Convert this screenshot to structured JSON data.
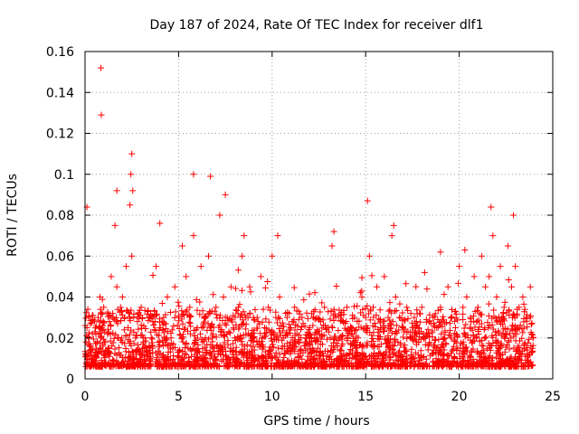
{
  "chart_data": {
    "type": "scatter",
    "title": "Day 187 of 2024, Rate Of TEC Index for receiver dlf1",
    "xlabel": "GPS time / hours",
    "ylabel": "ROTI / TECUs",
    "xlim": [
      0,
      25
    ],
    "ylim": [
      0,
      0.16
    ],
    "xticks": [
      0,
      5,
      10,
      15,
      20,
      25
    ],
    "xtick_labels": [
      "0",
      "5",
      "10",
      "15",
      "20",
      "25"
    ],
    "yticks": [
      0,
      0.02,
      0.04,
      0.06,
      0.08,
      0.1,
      0.12,
      0.14,
      0.16
    ],
    "ytick_labels": [
      "0",
      "0.02",
      "0.04",
      "0.06",
      "0.08",
      "0.1",
      "0.12",
      "0.14",
      "0.16"
    ],
    "grid": true,
    "marker": "+",
    "color": "#ff0000",
    "series": [
      {
        "name": "ROTI",
        "note": "dense band of values mostly 0.005-0.03 across 0-24 h; sampled representative points",
        "x": [
          0.02,
          0.05,
          0.1,
          0.15,
          0.2,
          0.25,
          0.3,
          0.35,
          0.4,
          0.5,
          0.6,
          0.7,
          0.8,
          0.85,
          0.9,
          1.0,
          1.1,
          1.2,
          1.3,
          1.4,
          1.5,
          1.6,
          1.7,
          1.8,
          1.9,
          2.0,
          2.1,
          2.2,
          2.3,
          2.4,
          2.5,
          2.6,
          2.7,
          2.8,
          3.0,
          3.2,
          3.4,
          3.6,
          3.8,
          4.0,
          4.2,
          4.4,
          4.6,
          4.8,
          5.0,
          5.2,
          5.4,
          5.6,
          5.8,
          6.0,
          6.2,
          6.4,
          6.6,
          6.8,
          7.0,
          7.2,
          7.4,
          7.6,
          7.8,
          8.0,
          8.2,
          8.4,
          8.6,
          8.8,
          9.0,
          9.2,
          9.4,
          9.6,
          9.8,
          10.0,
          10.2,
          10.4,
          10.6,
          10.8,
          11.0,
          11.2,
          11.4,
          11.6,
          11.8,
          12.0,
          12.2,
          12.4,
          12.6,
          12.8,
          13.0,
          13.2,
          13.4,
          13.6,
          13.8,
          14.0,
          14.2,
          14.4,
          14.6,
          14.8,
          15.0,
          15.2,
          15.4,
          15.6,
          15.8,
          16.0,
          16.2,
          16.4,
          16.6,
          16.8,
          17.0,
          17.2,
          17.4,
          17.6,
          17.8,
          18.0,
          18.2,
          18.4,
          18.6,
          18.8,
          19.0,
          19.2,
          19.4,
          19.6,
          19.8,
          20.0,
          20.2,
          20.4,
          20.6,
          20.8,
          21.0,
          21.2,
          21.4,
          21.6,
          21.8,
          22.0,
          22.2,
          22.4,
          22.6,
          22.8,
          23.0,
          23.2,
          23.4,
          23.6,
          23.8,
          23.95,
          0.85,
          0.87,
          2.5,
          2.45,
          2.55,
          1.7,
          5.8,
          6.7,
          7.5,
          15.1,
          16.5,
          21.7,
          22.9,
          0.1,
          4.0,
          8.5,
          10.3,
          13.3,
          19.0,
          20.3
        ],
        "y": [
          0.012,
          0.018,
          0.025,
          0.034,
          0.02,
          0.014,
          0.016,
          0.01,
          0.022,
          0.028,
          0.015,
          0.03,
          0.04,
          0.02,
          0.025,
          0.035,
          0.018,
          0.022,
          0.028,
          0.05,
          0.03,
          0.075,
          0.045,
          0.02,
          0.035,
          0.04,
          0.03,
          0.055,
          0.025,
          0.085,
          0.06,
          0.03,
          0.02,
          0.028,
          0.035,
          0.02,
          0.03,
          0.015,
          0.055,
          0.025,
          0.03,
          0.04,
          0.02,
          0.045,
          0.03,
          0.065,
          0.05,
          0.035,
          0.07,
          0.025,
          0.055,
          0.03,
          0.06,
          0.02,
          0.035,
          0.08,
          0.04,
          0.03,
          0.045,
          0.02,
          0.035,
          0.06,
          0.03,
          0.045,
          0.02,
          0.03,
          0.05,
          0.025,
          0.035,
          0.06,
          0.03,
          0.04,
          0.02,
          0.03,
          0.025,
          0.035,
          0.018,
          0.03,
          0.02,
          0.025,
          0.03,
          0.02,
          0.028,
          0.035,
          0.025,
          0.065,
          0.03,
          0.02,
          0.028,
          0.035,
          0.025,
          0.03,
          0.02,
          0.04,
          0.03,
          0.06,
          0.035,
          0.045,
          0.025,
          0.05,
          0.03,
          0.07,
          0.04,
          0.03,
          0.025,
          0.035,
          0.02,
          0.03,
          0.025,
          0.035,
          0.02,
          0.028,
          0.03,
          0.025,
          0.035,
          0.02,
          0.045,
          0.03,
          0.025,
          0.055,
          0.035,
          0.04,
          0.03,
          0.05,
          0.035,
          0.06,
          0.045,
          0.05,
          0.07,
          0.04,
          0.055,
          0.035,
          0.065,
          0.045,
          0.055,
          0.035,
          0.04,
          0.03,
          0.045,
          0.02,
          0.152,
          0.129,
          0.11,
          0.1,
          0.092,
          0.092,
          0.1,
          0.099,
          0.09,
          0.087,
          0.075,
          0.084,
          0.08,
          0.084,
          0.076,
          0.07,
          0.07,
          0.072,
          0.062,
          0.063
        ]
      }
    ]
  }
}
